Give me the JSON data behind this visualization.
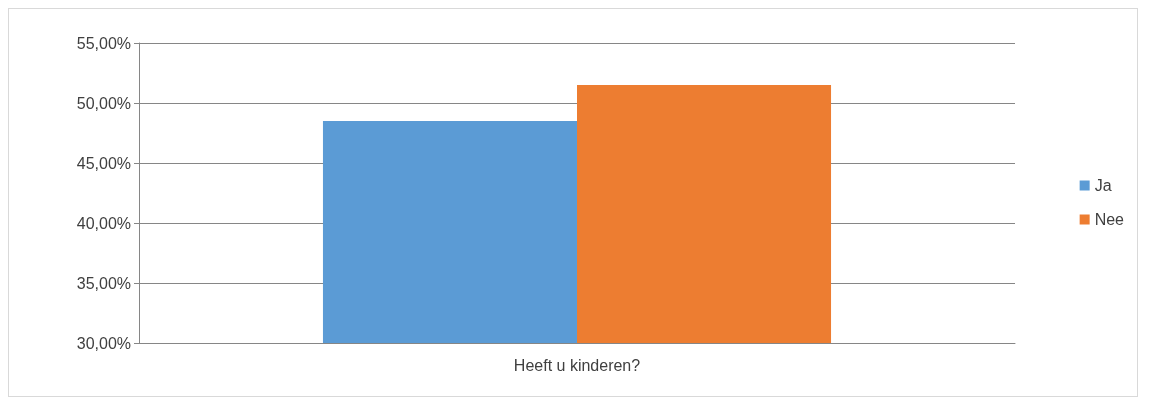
{
  "chart_data": {
    "type": "bar",
    "categories": [
      "Heeft u kinderen?"
    ],
    "series": [
      {
        "name": "Ja",
        "color": "#5b9bd5",
        "values": [
          48.5
        ]
      },
      {
        "name": "Nee",
        "color": "#ed7d31",
        "values": [
          51.5
        ]
      }
    ],
    "ylim": [
      30,
      55
    ],
    "yticks": [
      {
        "value": 30,
        "label": "30,00%"
      },
      {
        "value": 35,
        "label": "35,00%"
      },
      {
        "value": 40,
        "label": "40,00%"
      },
      {
        "value": 45,
        "label": "45,00%"
      },
      {
        "value": 50,
        "label": "50,00%"
      },
      {
        "value": 55,
        "label": "55,00%"
      }
    ],
    "grid": "y",
    "legend": "right"
  }
}
